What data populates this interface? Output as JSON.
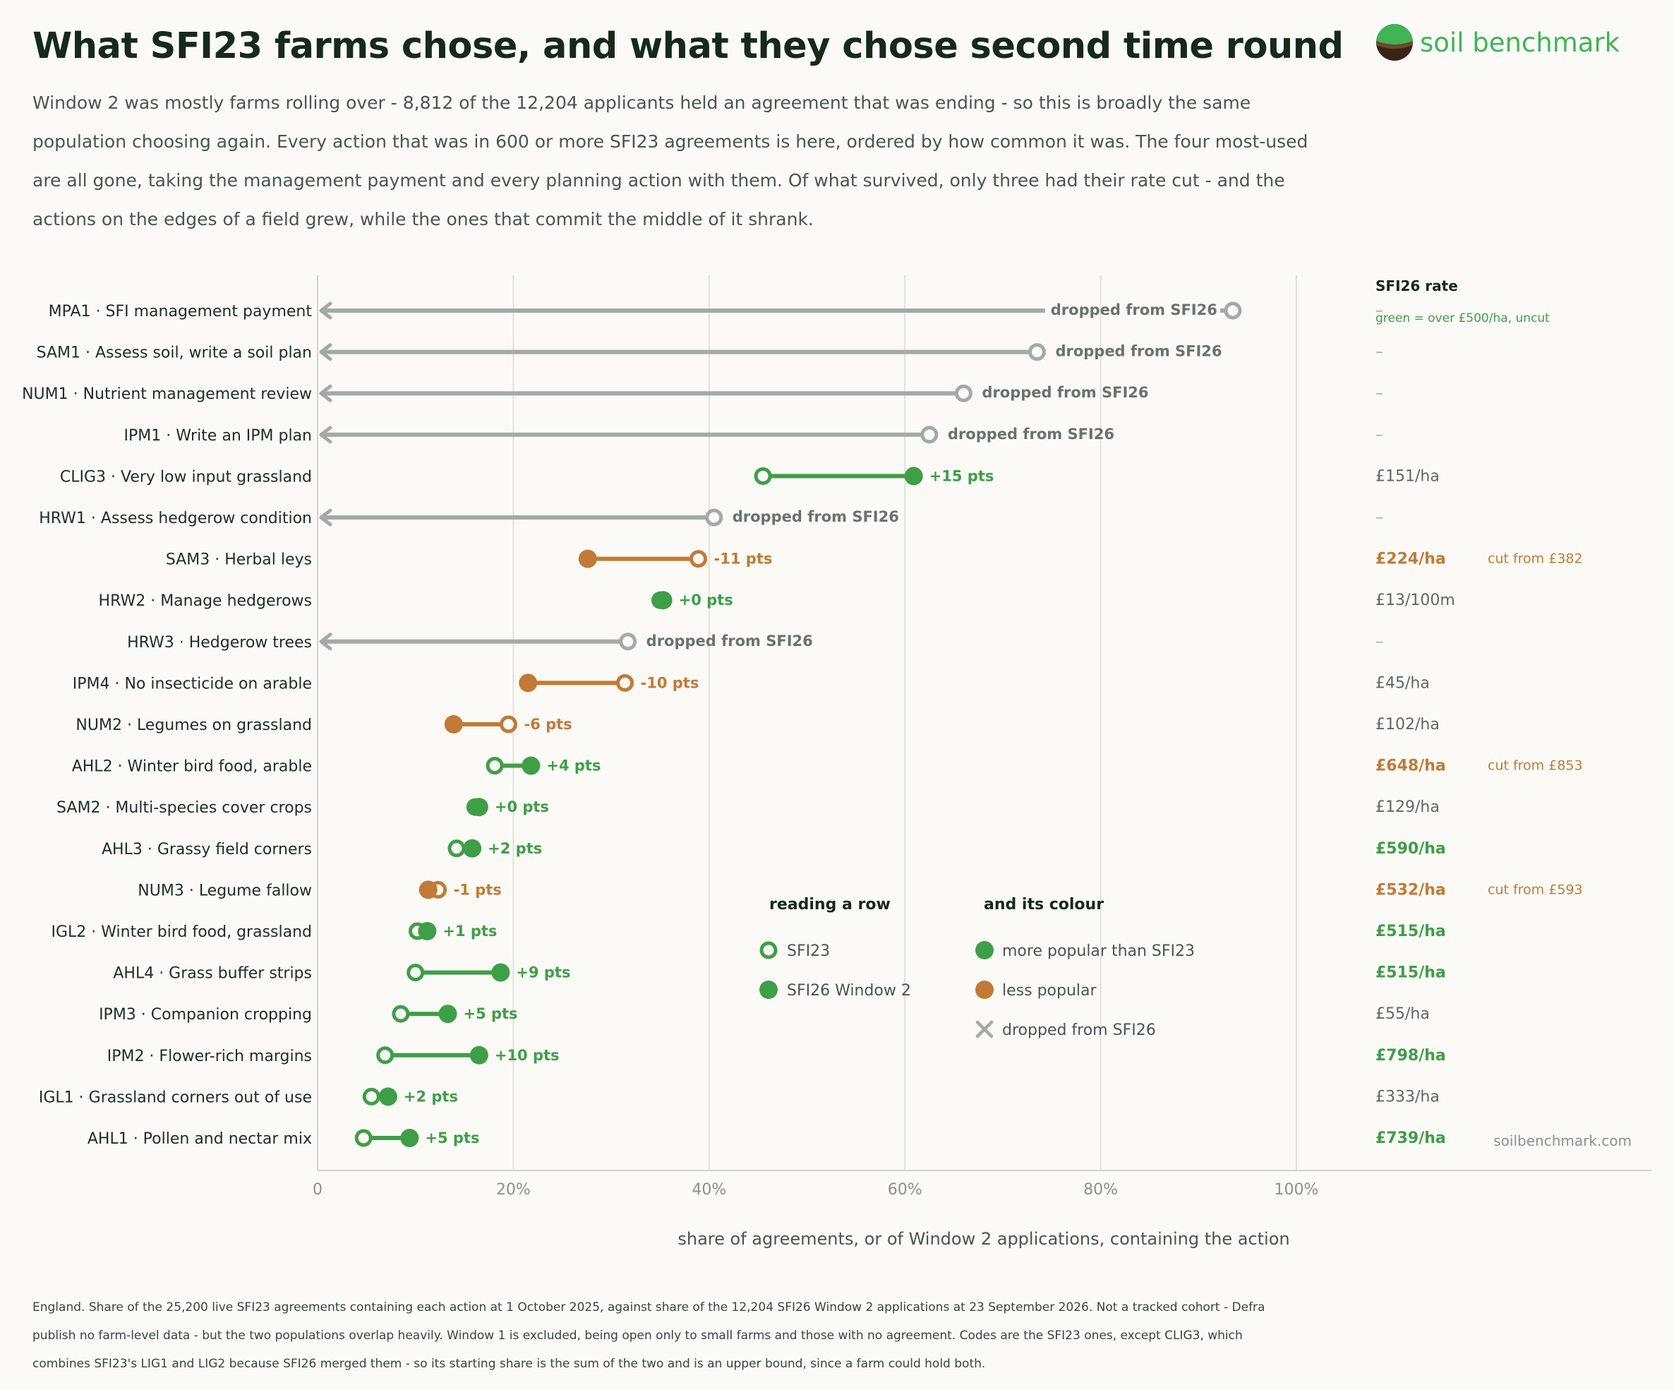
{
  "header": {
    "title": "What SFI23 farms chose, and what they chose second time round",
    "subtitle": "Window 2 was mostly farms rolling over - 8,812 of the 12,204 applicants held an agreement that was ending - so this is broadly the same population choosing again. Every action that was in 600 or more SFI23 agreements is here, ordered by how common it was. The four most-used are all gone, taking the management payment and every planning action with them. Of what survived, only three had their rate cut - and the actions on the edges of a field grew, while the ones that commit the middle of it shrank.",
    "logo_text": "soil benchmark"
  },
  "colors": {
    "up": "#3f9e48",
    "down": "#c27a36",
    "dropped": "#a3aaa5",
    "droppedText": "#6b726d",
    "grid": "#e1e1dc",
    "axis": "#d2d2cc"
  },
  "chart_data": {
    "type": "dumbbell",
    "xlabel": "share of agreements, or of Window 2 applications, containing the action",
    "xlim": [
      0,
      100
    ],
    "xticks": [
      0,
      20,
      40,
      60,
      80,
      100
    ],
    "xtick_labels": [
      "0",
      "20%",
      "40%",
      "60%",
      "80%",
      "100%"
    ],
    "rate_header": "SFI26 rate",
    "rate_subheader": "green = over £500/ha, uncut",
    "dropped_label": "dropped from SFI26",
    "source": "soilbenchmark.com",
    "rows": [
      {
        "label": "MPA1 · SFI management payment",
        "sfi23": 93.5,
        "sfi26": null,
        "delta": "",
        "status": "dropped",
        "rate": "–",
        "rate_style": "dash",
        "cut": ""
      },
      {
        "label": "SAM1 · Assess soil, write a soil plan",
        "sfi23": 73.5,
        "sfi26": null,
        "delta": "",
        "status": "dropped",
        "rate": "–",
        "rate_style": "dash",
        "cut": ""
      },
      {
        "label": "NUM1 · Nutrient management review",
        "sfi23": 66,
        "sfi26": null,
        "delta": "",
        "status": "dropped",
        "rate": "–",
        "rate_style": "dash",
        "cut": ""
      },
      {
        "label": "IPM1 · Write an IPM plan",
        "sfi23": 62.5,
        "sfi26": null,
        "delta": "",
        "status": "dropped",
        "rate": "–",
        "rate_style": "dash",
        "cut": ""
      },
      {
        "label": "CLIG3 · Very low input grassland",
        "sfi23": 45.5,
        "sfi26": 60.9,
        "delta": "+15 pts",
        "status": "up",
        "rate": "£151/ha",
        "rate_style": "plain",
        "cut": ""
      },
      {
        "label": "HRW1 · Assess hedgerow condition",
        "sfi23": 40.5,
        "sfi26": null,
        "delta": "",
        "status": "dropped",
        "rate": "–",
        "rate_style": "dash",
        "cut": ""
      },
      {
        "label": "SAM3 · Herbal leys",
        "sfi23": 38.9,
        "sfi26": 27.6,
        "delta": "-11 pts",
        "status": "down",
        "rate": "£224/ha",
        "rate_style": "cut",
        "cut": "cut from £382"
      },
      {
        "label": "HRW2 · Manage hedgerows",
        "sfi23": 35,
        "sfi26": 35.3,
        "delta": "+0 pts",
        "status": "up",
        "rate": "£13/100m",
        "rate_style": "plain",
        "cut": ""
      },
      {
        "label": "HRW3 · Hedgerow trees",
        "sfi23": 31.7,
        "sfi26": null,
        "delta": "",
        "status": "dropped",
        "rate": "–",
        "rate_style": "dash",
        "cut": ""
      },
      {
        "label": "IPM4 · No insecticide on arable",
        "sfi23": 31.4,
        "sfi26": 21.5,
        "delta": "-10 pts",
        "status": "down",
        "rate": "£45/ha",
        "rate_style": "plain",
        "cut": ""
      },
      {
        "label": "NUM2 · Legumes on grassland",
        "sfi23": 19.5,
        "sfi26": 13.9,
        "delta": "-6 pts",
        "status": "down",
        "rate": "£102/ha",
        "rate_style": "plain",
        "cut": ""
      },
      {
        "label": "AHL2 · Winter bird food, arable",
        "sfi23": 18.1,
        "sfi26": 21.8,
        "delta": "+4 pts",
        "status": "up",
        "rate": "£648/ha",
        "rate_style": "cut",
        "cut": "cut from £853"
      },
      {
        "label": "SAM2 · Multi-species cover crops",
        "sfi23": 16.1,
        "sfi26": 16.5,
        "delta": "+0 pts",
        "status": "up",
        "rate": "£129/ha",
        "rate_style": "plain",
        "cut": ""
      },
      {
        "label": "AHL3 · Grassy field corners",
        "sfi23": 14.2,
        "sfi26": 15.8,
        "delta": "+2 pts",
        "status": "up",
        "rate": "£590/ha",
        "rate_style": "green",
        "cut": ""
      },
      {
        "label": "NUM3 · Legume fallow",
        "sfi23": 12.3,
        "sfi26": 11.3,
        "delta": "-1 pts",
        "status": "down",
        "rate": "£532/ha",
        "rate_style": "cut",
        "cut": "cut from £593"
      },
      {
        "label": "IGL2 · Winter bird food, grassland",
        "sfi23": 10.2,
        "sfi26": 11.2,
        "delta": "+1 pts",
        "status": "up",
        "rate": "£515/ha",
        "rate_style": "green",
        "cut": ""
      },
      {
        "label": "AHL4 · Grass buffer strips",
        "sfi23": 10.0,
        "sfi26": 18.7,
        "delta": "+9 pts",
        "status": "up",
        "rate": "£515/ha",
        "rate_style": "green",
        "cut": ""
      },
      {
        "label": "IPM3 · Companion cropping",
        "sfi23": 8.5,
        "sfi26": 13.3,
        "delta": "+5 pts",
        "status": "up",
        "rate": "£55/ha",
        "rate_style": "plain",
        "cut": ""
      },
      {
        "label": "IPM2 · Flower-rich margins",
        "sfi23": 6.9,
        "sfi26": 16.5,
        "delta": "+10 pts",
        "status": "up",
        "rate": "£798/ha",
        "rate_style": "green",
        "cut": ""
      },
      {
        "label": "IGL1 · Grassland corners out of use",
        "sfi23": 5.5,
        "sfi26": 7.2,
        "delta": "+2 pts",
        "status": "up",
        "rate": "£333/ha",
        "rate_style": "plain",
        "cut": ""
      },
      {
        "label": "AHL1 · Pollen and nectar mix",
        "sfi23": 4.7,
        "sfi26": 9.4,
        "delta": "+5 pts",
        "status": "up",
        "rate": "£739/ha",
        "rate_style": "green",
        "cut": ""
      }
    ],
    "legend": {
      "reading_title": "reading a row",
      "reading_items": [
        "SFI23",
        "SFI26 Window 2"
      ],
      "colour_title": "and its colour",
      "colour_items": [
        "more popular than SFI23",
        "less popular",
        "dropped from SFI26"
      ]
    }
  },
  "footnote": "England. Share of the 25,200 live SFI23 agreements containing each action at 1 October 2025, against share of the 12,204 SFI26 Window 2 applications at 23 September 2026. Not a tracked cohort - Defra publish no farm-level data - but the two populations overlap heavily. Window 1 is excluded, being open only to small farms and those with no agreement. Codes are the SFI23 ones, except CLIG3, which combines SFI23's LIG1 and LIG2 because SFI26 merged them - so its starting share is the sum of the two and is an upper bound, since a farm could hold both."
}
